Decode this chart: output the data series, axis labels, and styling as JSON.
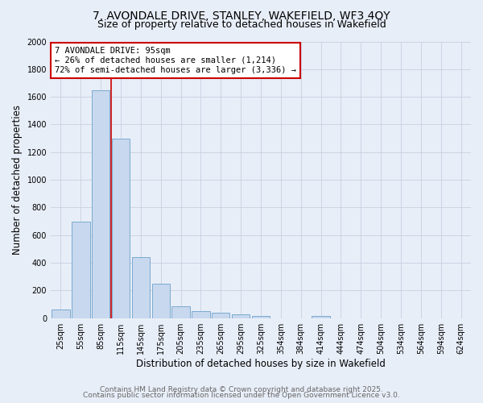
{
  "title1": "7, AVONDALE DRIVE, STANLEY, WAKEFIELD, WF3 4QY",
  "title2": "Size of property relative to detached houses in Wakefield",
  "xlabel": "Distribution of detached houses by size in Wakefield",
  "ylabel": "Number of detached properties",
  "categories": [
    "25sqm",
    "55sqm",
    "85sqm",
    "115sqm",
    "145sqm",
    "175sqm",
    "205sqm",
    "235sqm",
    "265sqm",
    "295sqm",
    "325sqm",
    "354sqm",
    "384sqm",
    "414sqm",
    "444sqm",
    "474sqm",
    "504sqm",
    "534sqm",
    "564sqm",
    "594sqm",
    "624sqm"
  ],
  "values": [
    60,
    700,
    1650,
    1300,
    440,
    250,
    85,
    50,
    40,
    25,
    15,
    0,
    0,
    15,
    0,
    0,
    0,
    0,
    0,
    0,
    0
  ],
  "bar_color": "#c8d8ee",
  "bar_edgecolor": "#7aaad0",
  "bar_linewidth": 0.7,
  "vline_color": "#cc0000",
  "vline_pos": 2.5,
  "annotation_line1": "7 AVONDALE DRIVE: 95sqm",
  "annotation_line2": "← 26% of detached houses are smaller (1,214)",
  "annotation_line3": "72% of semi-detached houses are larger (3,336) →",
  "annotation_box_edgecolor": "#cc0000",
  "annotation_facecolor": "white",
  "ylim": [
    0,
    2000
  ],
  "yticks": [
    0,
    200,
    400,
    600,
    800,
    1000,
    1200,
    1400,
    1600,
    1800,
    2000
  ],
  "bg_color": "#e8eef8",
  "grid_color": "#c8d0e0",
  "footer1": "Contains HM Land Registry data © Crown copyright and database right 2025.",
  "footer2": "Contains public sector information licensed under the Open Government Licence v3.0.",
  "title_fontsize": 10,
  "subtitle_fontsize": 9,
  "axis_label_fontsize": 8.5,
  "tick_fontsize": 7,
  "annotation_fontsize": 7.5,
  "footer_fontsize": 6.5
}
